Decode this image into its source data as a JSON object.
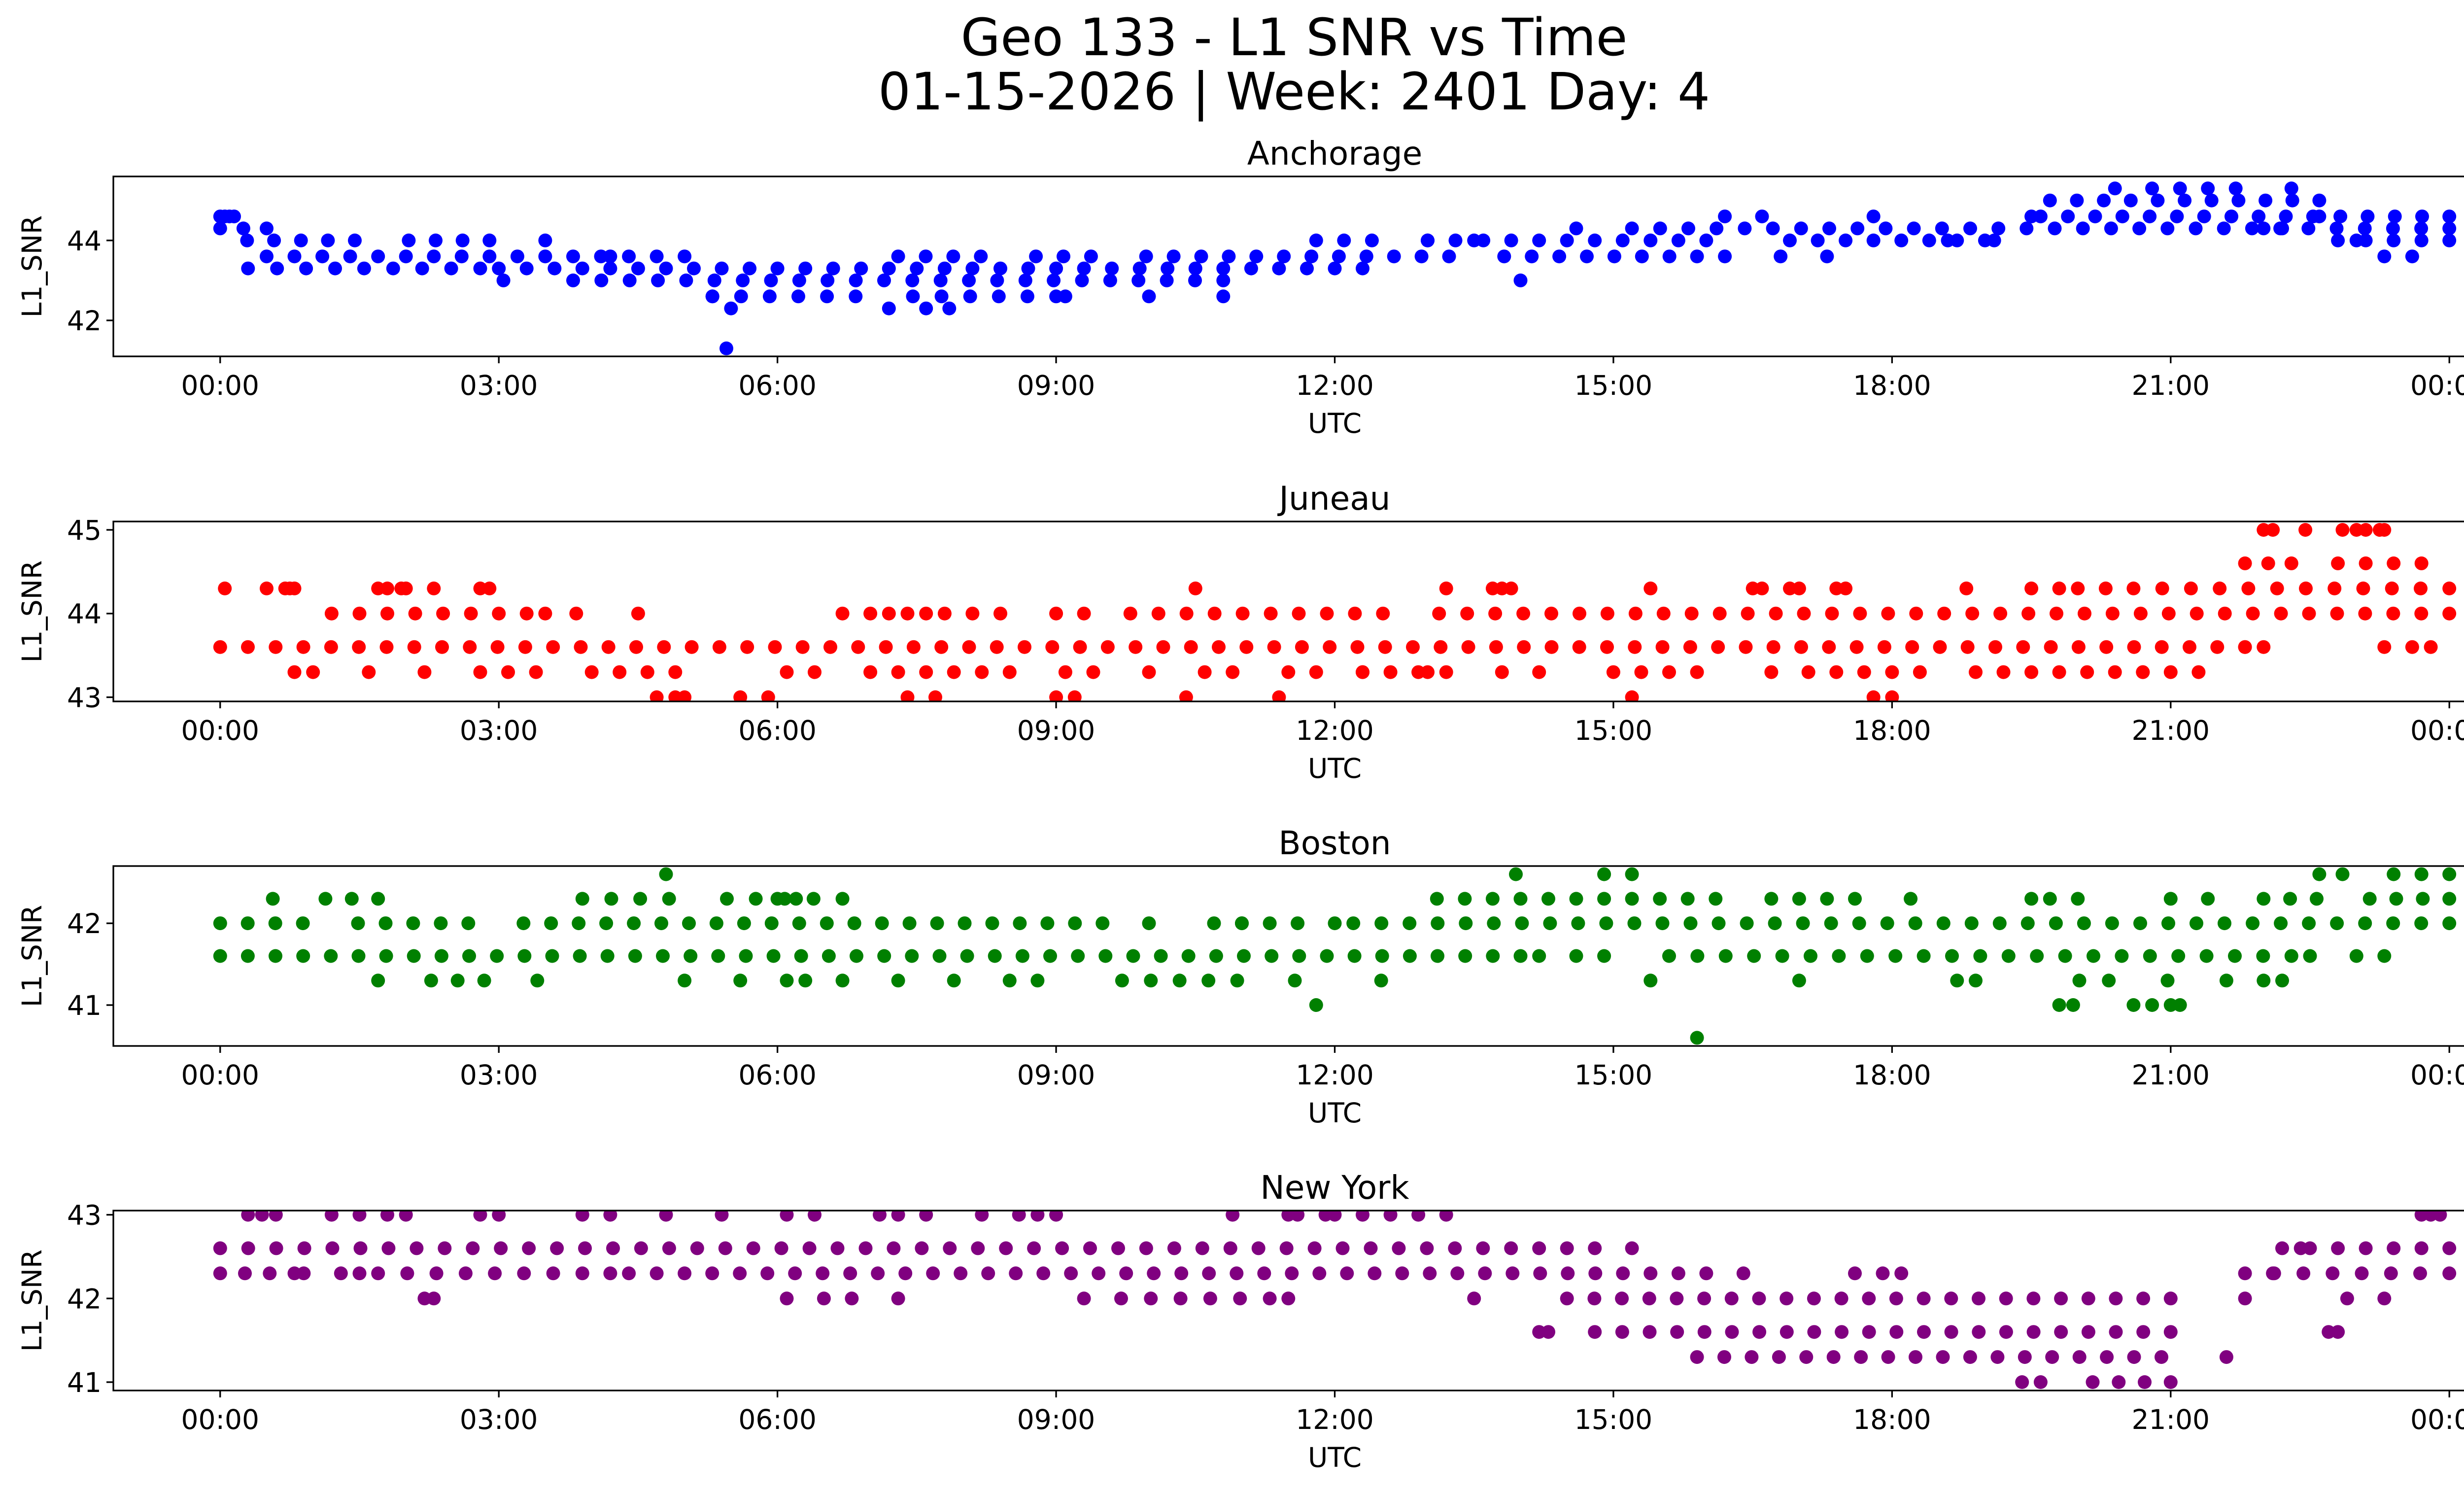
{
  "figure": {
    "title_line1": "Geo 133 - L1 SNR vs Time",
    "title_line2": "01-15-2026 | Week: 2401 Day: 4"
  },
  "chart_data": [
    {
      "type": "scatter",
      "title": "Anchorage",
      "xlabel": "UTC",
      "ylabel": "L1_SNR",
      "color": "#0000ff",
      "xlim_hours": [
        -1.15,
        25.15
      ],
      "ylim": [
        41.1,
        45.6
      ],
      "yticks": [
        42,
        44
      ],
      "xticks_hours": [
        0,
        3,
        6,
        9,
        12,
        15,
        18,
        21,
        24
      ],
      "xtick_labels": [
        "00:00",
        "03:00",
        "06:00",
        "09:00",
        "12:00",
        "15:00",
        "18:00",
        "21:00",
        "00:00"
      ],
      "bands": [
        {
          "snr": 44.6,
          "segments": [
            [
              0.0,
              0.15
            ],
            [
              19.6,
              24.0
            ]
          ],
          "density": 1.0
        },
        {
          "snr": 44.3,
          "segments": [
            [
              0.0,
              0.5
            ],
            [
              15.2,
              24.0
            ]
          ],
          "density": 1.0
        },
        {
          "snr": 44.0,
          "segments": [
            [
              0.0,
              2.9
            ],
            [
              11.8,
              19.0
            ],
            [
              22.8,
              24.0
            ]
          ],
          "density": 0.9
        },
        {
          "snr": 43.6,
          "segments": [
            [
              0.2,
              5.0
            ],
            [
              7.3,
              15.9
            ]
          ],
          "density": 0.95
        },
        {
          "snr": 43.3,
          "segments": [
            [
              0.3,
              2.8
            ],
            [
              3.0,
              12.3
            ]
          ],
          "density": 1.0
        },
        {
          "snr": 43.0,
          "segments": [
            [
              3.8,
              10.8
            ]
          ],
          "density": 1.0
        },
        {
          "snr": 42.6,
          "segments": [
            [
              5.3,
              9.0
            ]
          ],
          "density": 0.95
        },
        {
          "snr": 45.0,
          "segments": [
            [
              19.7,
              22.6
            ]
          ],
          "density": 0.85
        }
      ],
      "points": [
        [
          0.05,
          44.6
        ],
        [
          0.1,
          44.6
        ],
        [
          5.5,
          42.3
        ],
        [
          5.45,
          41.3
        ],
        [
          5.3,
          42.6
        ],
        [
          3.5,
          44.0
        ],
        [
          3.05,
          43.0
        ],
        [
          4.2,
          43.6
        ],
        [
          7.2,
          42.3
        ],
        [
          7.6,
          42.3
        ],
        [
          7.85,
          42.3
        ],
        [
          9.1,
          42.6
        ],
        [
          10.0,
          42.6
        ],
        [
          10.8,
          42.6
        ],
        [
          13.0,
          44.0
        ],
        [
          13.5,
          44.0
        ],
        [
          14.0,
          43.0
        ],
        [
          14.6,
          44.3
        ],
        [
          16.2,
          44.6
        ],
        [
          16.6,
          44.6
        ],
        [
          16.2,
          43.6
        ],
        [
          16.8,
          43.6
        ],
        [
          17.3,
          43.6
        ],
        [
          17.8,
          44.6
        ],
        [
          20.4,
          45.3
        ],
        [
          20.8,
          45.3
        ],
        [
          21.1,
          45.3
        ],
        [
          21.4,
          45.3
        ],
        [
          21.7,
          45.3
        ],
        [
          22.3,
          45.3
        ],
        [
          22.0,
          44.3
        ],
        [
          22.2,
          44.3
        ],
        [
          23.0,
          44.0
        ],
        [
          23.3,
          43.6
        ],
        [
          23.6,
          43.6
        ],
        [
          19.5,
          44.6
        ],
        [
          18.6,
          44.0
        ],
        [
          19.1,
          44.0
        ],
        [
          22.6,
          44.6
        ]
      ]
    },
    {
      "type": "scatter",
      "title": "Juneau",
      "xlabel": "UTC",
      "ylabel": "L1_SNR",
      "color": "#ff0000",
      "xlim_hours": [
        -1.15,
        25.15
      ],
      "ylim": [
        42.95,
        45.1
      ],
      "yticks": [
        43,
        44,
        45
      ],
      "xticks_hours": [
        0,
        3,
        6,
        9,
        12,
        15,
        18,
        21,
        24
      ],
      "xtick_labels": [
        "00:00",
        "03:00",
        "06:00",
        "09:00",
        "12:00",
        "15:00",
        "18:00",
        "21:00",
        "00:00"
      ],
      "bands": [
        {
          "snr": 44.0,
          "segments": [
            [
              0.0,
              3.3
            ],
            [
              3.5,
              4.5
            ],
            [
              9.8,
              24.0
            ]
          ],
          "density": 0.9
        },
        {
          "snr": 43.6,
          "segments": [
            [
              0.0,
              21.8
            ]
          ],
          "density": 1.0
        },
        {
          "snr": 43.3,
          "segments": [
            [
              1.0,
              11.8
            ],
            [
              12.3,
              21.0
            ]
          ],
          "density": 0.6
        },
        {
          "snr": 43.0,
          "segments": [
            [
              5.6,
              8.3
            ]
          ],
          "density": 0.6
        },
        {
          "snr": 44.3,
          "segments": [
            [
              20.6,
              24.0
            ]
          ],
          "density": 1.0
        },
        {
          "snr": 44.6,
          "segments": [
            [
              21.8,
              22.3
            ],
            [
              22.8,
              23.7
            ]
          ],
          "density": 1.0
        }
      ],
      "points": [
        [
          0.05,
          44.3
        ],
        [
          0.5,
          44.3
        ],
        [
          0.7,
          44.3
        ],
        [
          0.75,
          44.3
        ],
        [
          0.8,
          44.3
        ],
        [
          1.7,
          44.3
        ],
        [
          1.8,
          44.3
        ],
        [
          1.95,
          44.3
        ],
        [
          2.0,
          44.3
        ],
        [
          2.3,
          44.3
        ],
        [
          2.8,
          44.3
        ],
        [
          2.9,
          44.3
        ],
        [
          0.8,
          43.3
        ],
        [
          4.7,
          43.0
        ],
        [
          4.9,
          43.0
        ],
        [
          5.0,
          43.0
        ],
        [
          9.0,
          43.0
        ],
        [
          9.2,
          43.0
        ],
        [
          10.4,
          43.0
        ],
        [
          11.4,
          43.0
        ],
        [
          15.2,
          43.0
        ],
        [
          17.8,
          43.0
        ],
        [
          18.0,
          43.0
        ],
        [
          10.5,
          44.3
        ],
        [
          13.2,
          44.3
        ],
        [
          13.7,
          44.3
        ],
        [
          13.8,
          44.3
        ],
        [
          13.9,
          44.3
        ],
        [
          15.4,
          44.3
        ],
        [
          16.5,
          44.3
        ],
        [
          16.6,
          44.3
        ],
        [
          16.9,
          44.3
        ],
        [
          17.0,
          44.3
        ],
        [
          17.4,
          44.3
        ],
        [
          17.5,
          44.3
        ],
        [
          18.8,
          44.3
        ],
        [
          19.5,
          44.3
        ],
        [
          19.8,
          44.3
        ],
        [
          20.0,
          44.3
        ],
        [
          20.3,
          44.3
        ],
        [
          22.0,
          45.0
        ],
        [
          22.1,
          45.0
        ],
        [
          22.45,
          45.0
        ],
        [
          22.85,
          45.0
        ],
        [
          23.0,
          45.0
        ],
        [
          23.1,
          45.0
        ],
        [
          23.25,
          45.0
        ],
        [
          23.3,
          45.0
        ],
        [
          21.8,
          43.6
        ],
        [
          22.0,
          43.6
        ],
        [
          23.3,
          43.6
        ],
        [
          23.6,
          43.6
        ],
        [
          23.8,
          43.6
        ],
        [
          6.7,
          44.0
        ],
        [
          7.0,
          44.0
        ],
        [
          7.2,
          44.0
        ],
        [
          7.4,
          44.0
        ],
        [
          7.6,
          44.0
        ],
        [
          7.8,
          44.0
        ],
        [
          8.1,
          44.0
        ],
        [
          8.4,
          44.0
        ],
        [
          9.0,
          44.0
        ],
        [
          9.3,
          44.0
        ],
        [
          12.3,
          43.3
        ],
        [
          13.0,
          43.3
        ],
        [
          14.2,
          43.3
        ],
        [
          16.7,
          43.3
        ],
        [
          21.3,
          43.3
        ],
        [
          20.4,
          43.3
        ],
        [
          20.7,
          43.3
        ]
      ]
    },
    {
      "type": "scatter",
      "title": "Boston",
      "xlabel": "UTC",
      "ylabel": "L1_SNR",
      "color": "#008000",
      "xlim_hours": [
        -1.15,
        25.15
      ],
      "ylim": [
        40.5,
        42.7
      ],
      "yticks": [
        41,
        42
      ],
      "xticks_hours": [
        0,
        3,
        6,
        9,
        12,
        15,
        18,
        21,
        24
      ],
      "xtick_labels": [
        "00:00",
        "03:00",
        "06:00",
        "09:00",
        "12:00",
        "15:00",
        "18:00",
        "21:00",
        "00:00"
      ],
      "bands": [
        {
          "snr": 42.3,
          "segments": [
            [
              0.0,
              1.7
            ],
            [
              3.9,
              6.7
            ],
            [
              12.8,
              18.5
            ],
            [
              22.0,
              24.0
            ]
          ],
          "density": 0.75
        },
        {
          "snr": 42.0,
          "segments": [
            [
              0.0,
              9.5
            ],
            [
              10.7,
              11.0
            ],
            [
              12.2,
              24.0
            ]
          ],
          "density": 0.95
        },
        {
          "snr": 41.6,
          "segments": [
            [
              0.0,
              14.0
            ],
            [
              15.6,
              22.3
            ]
          ],
          "density": 1.0
        },
        {
          "snr": 41.3,
          "segments": [
            [
              1.7,
              3.7
            ],
            [
              7.3,
              8.8
            ],
            [
              9.4,
              12.5
            ],
            [
              19.7,
              21.6
            ]
          ],
          "density": 0.7
        },
        {
          "snr": 42.6,
          "segments": [
            [
              14.3,
              15.2
            ],
            [
              22.6,
              23.1
            ],
            [
              23.4,
              24.0
            ]
          ],
          "density": 0.85
        }
      ],
      "points": [
        [
          4.8,
          42.6
        ],
        [
          13.95,
          42.6
        ],
        [
          15.9,
          40.6
        ],
        [
          11.8,
          41.0
        ],
        [
          19.8,
          41.0
        ],
        [
          19.95,
          41.0
        ],
        [
          20.6,
          41.0
        ],
        [
          20.8,
          41.0
        ],
        [
          21.0,
          41.0
        ],
        [
          21.1,
          41.0
        ],
        [
          5.0,
          41.3
        ],
        [
          5.6,
          41.3
        ],
        [
          6.1,
          41.3
        ],
        [
          6.3,
          41.3
        ],
        [
          6.7,
          41.3
        ],
        [
          15.4,
          41.3
        ],
        [
          17.0,
          41.3
        ],
        [
          18.7,
          41.3
        ],
        [
          18.9,
          41.3
        ],
        [
          22.0,
          41.3
        ],
        [
          22.2,
          41.3
        ],
        [
          14.2,
          41.6
        ],
        [
          14.6,
          41.6
        ],
        [
          14.9,
          41.6
        ],
        [
          22.5,
          41.6
        ],
        [
          23.0,
          41.6
        ],
        [
          23.3,
          41.6
        ],
        [
          19.5,
          42.3
        ],
        [
          19.7,
          42.3
        ],
        [
          20.0,
          42.3
        ],
        [
          21.0,
          42.3
        ],
        [
          21.4,
          42.3
        ],
        [
          6.2,
          42.3
        ],
        [
          6.0,
          42.3
        ],
        [
          11.0,
          42.0
        ],
        [
          11.3,
          42.0
        ],
        [
          11.6,
          42.0
        ],
        [
          12.0,
          42.0
        ],
        [
          10.0,
          42.0
        ]
      ]
    },
    {
      "type": "scatter",
      "title": "New York",
      "xlabel": "UTC",
      "ylabel": "L1_SNR",
      "color": "#800080",
      "xlim_hours": [
        -1.15,
        25.15
      ],
      "ylim": [
        40.9,
        43.05
      ],
      "yticks": [
        41,
        42,
        43
      ],
      "xticks_hours": [
        0,
        3,
        6,
        9,
        12,
        15,
        18,
        21,
        24
      ],
      "xtick_labels": [
        "00:00",
        "03:00",
        "06:00",
        "09:00",
        "12:00",
        "15:00",
        "18:00",
        "21:00",
        "00:00"
      ],
      "bands": [
        {
          "snr": 42.6,
          "segments": [
            [
              0.0,
              14.2
            ],
            [
              22.2,
              24.0
            ]
          ],
          "density": 1.0
        },
        {
          "snr": 42.3,
          "segments": [
            [
              0.0,
              0.8
            ],
            [
              1.7,
              3.9
            ],
            [
              5.0,
              15.4
            ],
            [
              21.8,
              24.0
            ]
          ],
          "density": 1.0
        },
        {
          "snr": 42.0,
          "segments": [
            [
              9.7,
              11.3
            ],
            [
              14.5,
              21.0
            ]
          ],
          "density": 0.95
        },
        {
          "snr": 41.6,
          "segments": [
            [
              14.8,
              21.0
            ]
          ],
          "density": 1.0
        },
        {
          "snr": 41.3,
          "segments": [
            [
              15.9,
              20.9
            ]
          ],
          "density": 1.0
        },
        {
          "snr": 43.0,
          "segments": [
            [
              0.6,
              1.8
            ],
            [
              3.0,
              5.4
            ],
            [
              12.0,
              13.2
            ]
          ],
          "density": 0.8
        },
        {
          "snr": 41.0,
          "segments": [
            [
              19.6,
              21.0
            ]
          ],
          "density": 0.8
        }
      ],
      "points": [
        [
          0.3,
          43.0
        ],
        [
          0.45,
          43.0
        ],
        [
          2.0,
          43.0
        ],
        [
          2.8,
          43.0
        ],
        [
          3.0,
          43.0
        ],
        [
          6.1,
          43.0
        ],
        [
          6.4,
          43.0
        ],
        [
          7.1,
          43.0
        ],
        [
          7.3,
          43.0
        ],
        [
          7.6,
          43.0
        ],
        [
          8.2,
          43.0
        ],
        [
          8.6,
          43.0
        ],
        [
          8.8,
          43.0
        ],
        [
          9.0,
          43.0
        ],
        [
          10.9,
          43.0
        ],
        [
          11.5,
          43.0
        ],
        [
          11.6,
          43.0
        ],
        [
          11.9,
          43.0
        ],
        [
          23.7,
          43.0
        ],
        [
          23.8,
          43.0
        ],
        [
          23.9,
          43.0
        ],
        [
          0.9,
          42.3
        ],
        [
          1.3,
          42.3
        ],
        [
          1.5,
          42.3
        ],
        [
          4.2,
          42.3
        ],
        [
          4.4,
          42.3
        ],
        [
          4.7,
          42.3
        ],
        [
          2.2,
          42.0
        ],
        [
          2.3,
          42.0
        ],
        [
          6.1,
          42.0
        ],
        [
          6.5,
          42.0
        ],
        [
          6.8,
          42.0
        ],
        [
          7.3,
          42.0
        ],
        [
          9.3,
          42.0
        ],
        [
          11.5,
          42.0
        ],
        [
          13.5,
          42.0
        ],
        [
          15.7,
          42.3
        ],
        [
          16.0,
          42.3
        ],
        [
          16.4,
          42.3
        ],
        [
          17.6,
          42.3
        ],
        [
          17.9,
          42.3
        ],
        [
          18.1,
          42.3
        ],
        [
          14.5,
          42.6
        ],
        [
          14.8,
          42.6
        ],
        [
          15.2,
          42.6
        ],
        [
          14.2,
          41.6
        ],
        [
          14.3,
          41.6
        ],
        [
          22.7,
          41.6
        ],
        [
          22.8,
          41.6
        ],
        [
          21.6,
          41.3
        ],
        [
          19.4,
          41.0
        ],
        [
          22.4,
          42.6
        ],
        [
          22.9,
          42.0
        ],
        [
          23.3,
          42.0
        ],
        [
          21.8,
          42.0
        ],
        [
          22.1,
          42.3
        ]
      ]
    }
  ]
}
